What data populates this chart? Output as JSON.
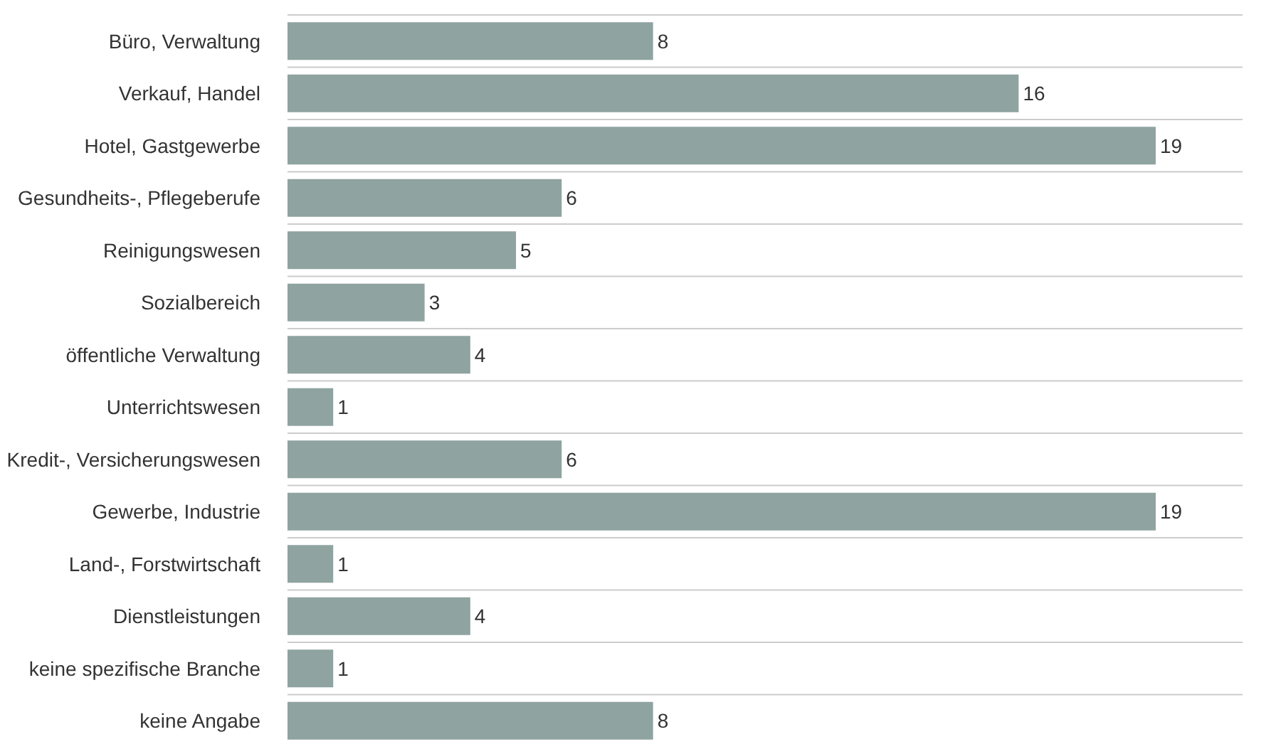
{
  "chart_data": {
    "type": "bar",
    "orientation": "horizontal",
    "categories": [
      "Büro, Verwaltung",
      "Verkauf, Handel",
      "Hotel, Gastgewerbe",
      "Gesundheits-, Pflegeberufe",
      "Reinigungswesen",
      "Sozialbereich",
      "öffentliche Verwaltung",
      "Unterrichtswesen",
      "Kredit-, Versicherungswesen",
      "Gewerbe, Industrie",
      "Land-, Forstwirtschaft",
      "Dienstleistungen",
      "keine spezifische Branche",
      "keine Angabe"
    ],
    "values": [
      8,
      16,
      19,
      6,
      5,
      3,
      4,
      1,
      6,
      19,
      1,
      4,
      1,
      8
    ],
    "color": "#8fa3a0",
    "data_labels": true,
    "grid": "y",
    "legend": false
  }
}
